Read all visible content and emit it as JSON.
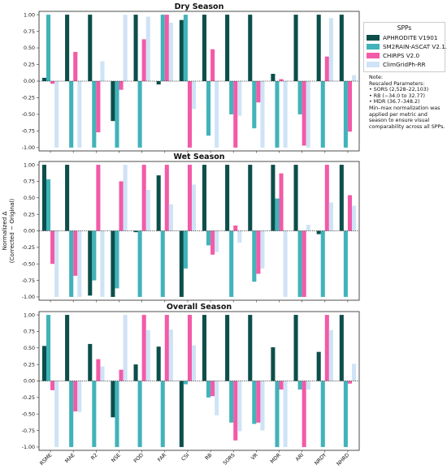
{
  "chart_data": [
    {
      "type": "bar",
      "title": "Dry Season",
      "categories": [
        "RSME",
        "MAE",
        "R2",
        "NSE",
        "POD",
        "FAR",
        "CSI",
        "RB",
        "SORS",
        "VR",
        "MDR",
        "ARI",
        "NRDY",
        "NHRD"
      ],
      "yticks": [
        "1.00",
        "0.75",
        "0.50",
        "0.25",
        "0.00",
        "-0.25",
        "-0.50",
        "-0.75",
        "-1.00"
      ],
      "ylim": [
        -1.05,
        1.05
      ],
      "series": [
        {
          "name": "APHRODITE V1901",
          "values": [
            0.05,
            1.0,
            1.0,
            -0.6,
            1.0,
            -0.05,
            0.92,
            1.0,
            1.0,
            1.0,
            0.11,
            1.0,
            1.0,
            1.0
          ]
        },
        {
          "name": "SM2RAIN-ASCAT V2.1.2n",
          "values": [
            1.0,
            -1.0,
            -1.0,
            -1.0,
            -1.0,
            1.0,
            1.0,
            -0.82,
            -0.5,
            -0.71,
            -1.0,
            -0.5,
            -1.0,
            -1.0
          ]
        },
        {
          "name": "CHIRPS V2.0",
          "values": [
            -0.04,
            0.44,
            -0.77,
            -0.13,
            0.63,
            1.0,
            -1.0,
            0.48,
            -1.0,
            -0.32,
            0.03,
            -0.97,
            0.37,
            -0.76
          ]
        },
        {
          "name": "ClimGridPh-RR",
          "values": [
            -1.0,
            -1.0,
            0.3,
            1.0,
            0.97,
            0.88,
            -0.42,
            -1.0,
            -0.52,
            -1.0,
            -1.0,
            -1.0,
            0.95,
            0.09
          ]
        }
      ]
    },
    {
      "type": "bar",
      "title": "Wet Season",
      "categories": [
        "RSME",
        "MAE",
        "R2",
        "NSE",
        "POD",
        "FAR",
        "CSI",
        "RB",
        "SORS",
        "VR",
        "MDR",
        "ARI",
        "NRDY",
        "NHRD"
      ],
      "yticks": [
        "1.00",
        "0.75",
        "0.50",
        "0.25",
        "0.00",
        "-0.25",
        "-0.50",
        "-0.75",
        "-1.00"
      ],
      "ylim": [
        -1.05,
        1.05
      ],
      "series": [
        {
          "name": "APHRODITE V1901",
          "values": [
            1.0,
            1.0,
            -0.98,
            -1.0,
            -0.02,
            0.84,
            -1.0,
            1.0,
            1.0,
            1.0,
            1.0,
            1.0,
            -0.05,
            1.0
          ]
        },
        {
          "name": "SM2RAIN-ASCAT V2.1.2n",
          "values": [
            0.78,
            -1.0,
            -0.75,
            -0.87,
            -1.0,
            -1.0,
            -0.57,
            -0.22,
            -1.0,
            -0.77,
            0.49,
            -1.0,
            -1.0,
            -1.0
          ]
        },
        {
          "name": "CHIRPS V2.0",
          "values": [
            -0.5,
            -0.68,
            1.0,
            0.75,
            1.0,
            1.0,
            1.0,
            -0.36,
            0.08,
            -0.65,
            0.87,
            -1.0,
            1.0,
            0.54
          ]
        },
        {
          "name": "ClimGridPh-RR",
          "values": [
            -1.0,
            -1.0,
            -1.0,
            1.0,
            0.62,
            0.4,
            0.7,
            -0.32,
            -0.18,
            -0.57,
            -1.0,
            0.09,
            0.43,
            0.38
          ]
        }
      ]
    },
    {
      "type": "bar",
      "title": "Overall Season",
      "categories": [
        "RSME",
        "MAE",
        "R2",
        "NSE",
        "POD",
        "FAR",
        "CSI",
        "RB",
        "SORS",
        "VR",
        "MDR",
        "ARI",
        "NRDY",
        "NHRD"
      ],
      "yticks": [
        "1.00",
        "0.75",
        "0.50",
        "0.25",
        "0.00",
        "-0.25",
        "-0.50",
        "-0.75",
        "-1.00"
      ],
      "ylim": [
        -1.05,
        1.05
      ],
      "series": [
        {
          "name": "APHRODITE V1901",
          "values": [
            0.53,
            1.0,
            0.56,
            -0.55,
            0.25,
            0.52,
            -1.0,
            1.0,
            1.0,
            1.0,
            0.51,
            1.0,
            0.44,
            1.0
          ]
        },
        {
          "name": "SM2RAIN-ASCAT V2.1.2n",
          "values": [
            1.0,
            -1.0,
            -1.0,
            -1.0,
            -1.0,
            -1.0,
            -0.05,
            -0.25,
            -0.63,
            -0.65,
            -1.0,
            -0.13,
            -1.0,
            -1.0
          ]
        },
        {
          "name": "CHIRPS V2.0",
          "values": [
            -0.14,
            -0.46,
            0.33,
            0.17,
            1.0,
            1.0,
            1.0,
            -0.23,
            -0.9,
            -0.63,
            -0.13,
            -1.0,
            1.0,
            -0.04
          ]
        },
        {
          "name": "ClimGridPh-RR",
          "values": [
            -1.0,
            -0.47,
            0.22,
            1.0,
            0.77,
            0.78,
            0.54,
            -0.52,
            -0.76,
            -0.75,
            -1.0,
            -0.13,
            0.77,
            0.26
          ]
        }
      ]
    }
  ],
  "ylabel_line1": "Normalized Δ",
  "ylabel_line2": "(Corrected − Original)",
  "colors": [
    "#0c4f4b",
    "#41b3ba",
    "#f35aa7",
    "#cfe3f6"
  ],
  "legend": {
    "title": "SPPs",
    "items": [
      "APHRODITE V1901",
      "SM2RAIN-ASCAT V2.1.2n",
      "CHIRPS V2.0",
      "ClimGridPh-RR"
    ]
  },
  "note": {
    "title": "Note:",
    "subtitle": "Rescaled Parameters:",
    "bullets": [
      "• SORS (2,528–22,103)",
      "• RB (−34.0 to 32.77)",
      "• MDR (36.7–348.2)"
    ],
    "body": "Min–max normalization was applied per metric and season to ensure visual comparability across all SPPs."
  }
}
